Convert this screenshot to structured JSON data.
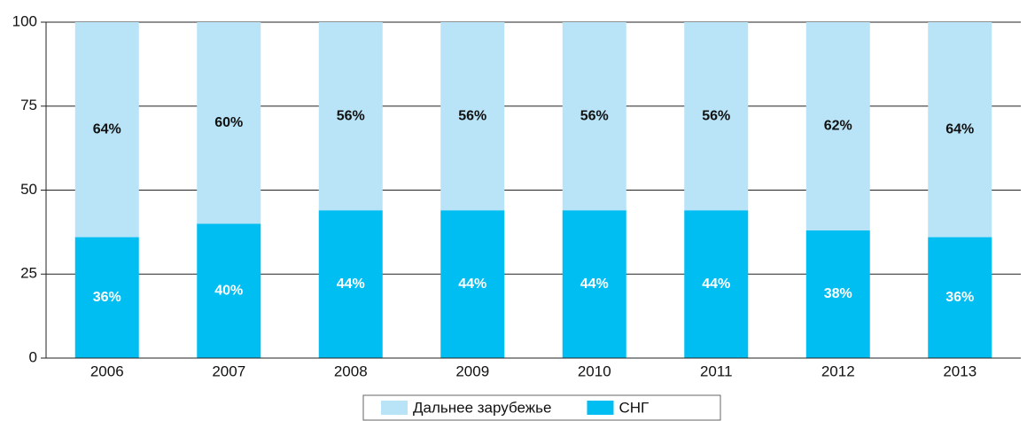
{
  "chart_data": {
    "type": "stacked_bar",
    "categories": [
      "2006",
      "2007",
      "2008",
      "2009",
      "2010",
      "2011",
      "2012",
      "2013"
    ],
    "series": [
      {
        "name": "СНГ",
        "color": "#00bdf2",
        "values": [
          36,
          40,
          44,
          44,
          44,
          44,
          38,
          36
        ],
        "value_labels": [
          "36%",
          "40%",
          "44%",
          "44%",
          "44%",
          "44%",
          "38%",
          "36%"
        ]
      },
      {
        "name": "Дальнее зарубежье",
        "color": "#b9e4f7",
        "values": [
          64,
          60,
          56,
          56,
          56,
          56,
          62,
          64
        ],
        "value_labels": [
          "64%",
          "60%",
          "56%",
          "56%",
          "56%",
          "56%",
          "62%",
          "64%"
        ]
      }
    ],
    "ylim": [
      0,
      100
    ],
    "yticks": [
      0,
      25,
      50,
      75,
      100
    ],
    "grid": true
  }
}
